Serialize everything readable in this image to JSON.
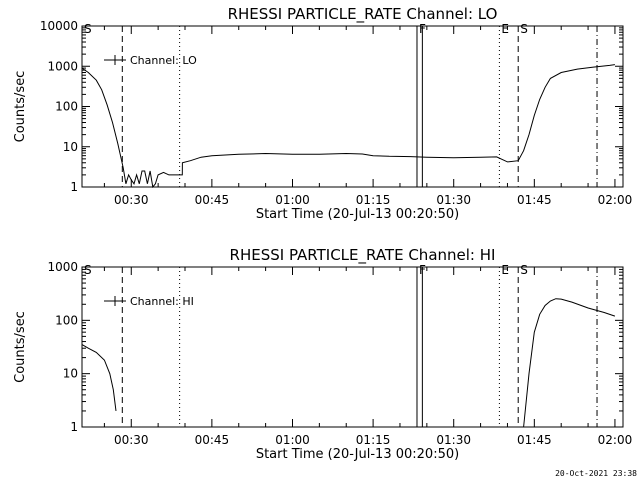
{
  "footer": {
    "timestamp": "20-Oct-2021 23:38"
  },
  "chart_data": [
    {
      "type": "line",
      "title": "RHESSI PARTICLE_RATE Channel: LO",
      "xlabel": "Start Time (20-Jul-13 00:20:50)",
      "ylabel": "Counts/sec",
      "yscale": "log",
      "xlim": [
        "00:20:50",
        "02:01:30"
      ],
      "ylim": [
        1,
        10000
      ],
      "x_ticks": [
        "00:30",
        "00:45",
        "01:00",
        "01:15",
        "01:30",
        "01:45",
        "02:00"
      ],
      "y_ticks": [
        "1",
        "10",
        "100",
        "1000",
        "10000"
      ],
      "legend": {
        "position": "top-left",
        "entries": [
          "Channel: LO"
        ]
      },
      "series": [
        {
          "name": "Channel: LO",
          "segments": [
            [
              [
                "00:20:50",
                900
              ],
              [
                "00:22:00",
                700
              ],
              [
                "00:23:30",
                450
              ],
              [
                "00:24:30",
                260
              ],
              [
                "00:25:30",
                110
              ],
              [
                "00:26:30",
                40
              ],
              [
                "00:27:30",
                12
              ],
              [
                "00:28:00",
                6
              ],
              [
                "00:28:30",
                3
              ],
              [
                "00:29:00",
                1.2
              ],
              [
                "00:29:30",
                2
              ],
              [
                "00:30:00",
                1.5
              ],
              [
                "00:30:30",
                1.2
              ],
              [
                "00:31:00",
                2
              ],
              [
                "00:31:30",
                1.2
              ],
              [
                "00:32:00",
                2.5
              ],
              [
                "00:32:30",
                2.5
              ],
              [
                "00:33:00",
                1.2
              ],
              [
                "00:33:30",
                2.5
              ],
              [
                "00:34:00",
                1
              ],
              [
                "00:34:30",
                1.2
              ],
              [
                "00:35:00",
                2
              ],
              [
                "00:36:00",
                2.3
              ],
              [
                "00:37:00",
                2
              ],
              [
                "00:38:00",
                2
              ],
              [
                "00:39:30",
                2
              ],
              [
                "00:39:31",
                4
              ],
              [
                "00:41:00",
                4.5
              ],
              [
                "00:43:00",
                5.5
              ],
              [
                "00:45:00",
                6
              ],
              [
                "00:50:00",
                6.5
              ],
              [
                "00:55:00",
                6.8
              ],
              [
                "01:00:00",
                6.5
              ],
              [
                "01:05:00",
                6.5
              ],
              [
                "01:10:00",
                6.8
              ],
              [
                "01:13:00",
                6.6
              ],
              [
                "01:15:00",
                6
              ],
              [
                "01:18:00",
                5.8
              ],
              [
                "01:22:00",
                5.7
              ],
              [
                "01:25:00",
                5.5
              ],
              [
                "01:30:00",
                5.3
              ],
              [
                "01:35:00",
                5.5
              ],
              [
                "01:38:00",
                5.6
              ],
              [
                "01:40:00",
                4.2
              ],
              [
                "01:42:00",
                4.5
              ],
              [
                "01:43:00",
                8
              ],
              [
                "01:44:00",
                20
              ],
              [
                "01:45:00",
                60
              ],
              [
                "01:46:00",
                150
              ],
              [
                "01:47:00",
                300
              ],
              [
                "01:48:00",
                500
              ],
              [
                "01:50:00",
                700
              ],
              [
                "01:53:00",
                850
              ],
              [
                "01:56:00",
                950
              ],
              [
                "01:59:00",
                1050
              ],
              [
                "02:00:00",
                1100
              ]
            ]
          ]
        }
      ],
      "vertical_markers": [
        {
          "label": "S",
          "time": "00:20:50",
          "style": "dashed"
        },
        {
          "label": "",
          "time": "00:28:20",
          "style": "dashed"
        },
        {
          "label": "",
          "time": "00:39:00",
          "style": "dotted"
        },
        {
          "label": "F",
          "time": "01:23:10",
          "style": "solid"
        },
        {
          "label": "",
          "time": "01:24:10",
          "style": "solid"
        },
        {
          "label": "E",
          "time": "01:38:30",
          "style": "dotted"
        },
        {
          "label": "S",
          "time": "01:42:00",
          "style": "dashed"
        },
        {
          "label": "",
          "time": "01:56:40",
          "style": "dashdot"
        }
      ]
    },
    {
      "type": "line",
      "title": "RHESSI PARTICLE_RATE Channel: HI",
      "xlabel": "Start Time (20-Jul-13 00:20:50)",
      "ylabel": "Counts/sec",
      "yscale": "log",
      "xlim": [
        "00:20:50",
        "02:01:30"
      ],
      "ylim": [
        1,
        1000
      ],
      "x_ticks": [
        "00:30",
        "00:45",
        "01:00",
        "01:15",
        "01:30",
        "01:45",
        "02:00"
      ],
      "y_ticks": [
        "1",
        "10",
        "100",
        "1000"
      ],
      "legend": {
        "position": "top-left",
        "entries": [
          "Channel: HI"
        ]
      },
      "series": [
        {
          "name": "Channel: HI",
          "segments": [
            [
              [
                "00:20:50",
                35
              ],
              [
                "00:22:00",
                30
              ],
              [
                "00:23:30",
                25
              ],
              [
                "00:25:00",
                18
              ],
              [
                "00:26:00",
                10
              ],
              [
                "00:26:40",
                5
              ],
              [
                "00:27:10",
                2
              ]
            ],
            [
              [
                "01:43:00",
                1
              ],
              [
                "01:44:00",
                10
              ],
              [
                "01:45:00",
                60
              ],
              [
                "01:46:00",
                130
              ],
              [
                "01:47:00",
                190
              ],
              [
                "01:48:00",
                230
              ],
              [
                "01:49:00",
                255
              ],
              [
                "01:50:00",
                250
              ],
              [
                "01:52:00",
                220
              ],
              [
                "01:55:00",
                170
              ],
              [
                "01:58:00",
                140
              ],
              [
                "02:00:00",
                120
              ]
            ]
          ]
        }
      ],
      "vertical_markers": [
        {
          "label": "S",
          "time": "00:20:50",
          "style": "dashed"
        },
        {
          "label": "",
          "time": "00:28:20",
          "style": "dashed"
        },
        {
          "label": "",
          "time": "00:39:00",
          "style": "dotted"
        },
        {
          "label": "F",
          "time": "01:23:10",
          "style": "solid"
        },
        {
          "label": "",
          "time": "01:24:10",
          "style": "solid"
        },
        {
          "label": "E",
          "time": "01:38:30",
          "style": "dotted"
        },
        {
          "label": "S",
          "time": "01:42:00",
          "style": "dashed"
        },
        {
          "label": "",
          "time": "01:56:40",
          "style": "dashdot"
        }
      ]
    }
  ]
}
